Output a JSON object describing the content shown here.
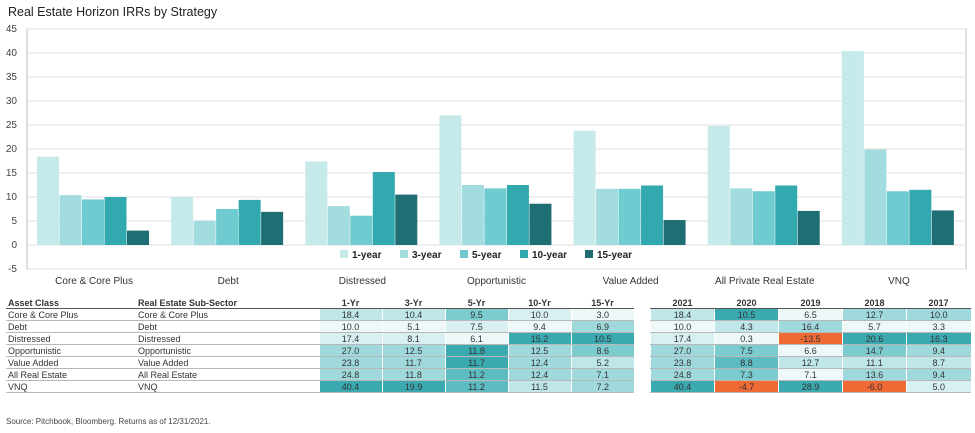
{
  "title": "Real Estate Horizon IRRs by Strategy",
  "source": "Source: Pitchbook, Bloomberg. Returns as of 12/31/2021.",
  "chart_data": {
    "type": "bar",
    "title": "Real Estate Horizon IRRs by Strategy",
    "categories": [
      "Core & Core Plus",
      "Debt",
      "Distressed",
      "Opportunistic",
      "Value Added",
      "All Private Real Estate",
      "VNQ"
    ],
    "series": [
      {
        "name": "1-year",
        "color": "#c6e9ea",
        "values": [
          18.4,
          10.0,
          17.4,
          27.0,
          23.8,
          24.8,
          40.4
        ]
      },
      {
        "name": "3-year",
        "color": "#a3dcde",
        "values": [
          10.4,
          5.1,
          8.1,
          12.5,
          11.7,
          11.8,
          19.9
        ]
      },
      {
        "name": "5-year",
        "color": "#6ecbcf",
        "values": [
          9.5,
          7.5,
          6.1,
          11.8,
          11.7,
          11.2,
          11.2
        ]
      },
      {
        "name": "10-year",
        "color": "#32a9af",
        "values": [
          10.0,
          9.4,
          15.2,
          12.5,
          12.4,
          12.4,
          11.5
        ]
      },
      {
        "name": "15-year",
        "color": "#1e6e73",
        "values": [
          3.0,
          6.9,
          10.5,
          8.6,
          5.2,
          7.1,
          7.2
        ]
      }
    ],
    "ylim": [
      -5,
      45
    ],
    "yticks": [
      -5,
      0,
      5,
      10,
      15,
      20,
      25,
      30,
      35,
      40,
      45
    ],
    "grid": true,
    "legend": "bottom-center"
  },
  "left_table": {
    "headers": [
      "Asset Class",
      "Real Estate Sub-Sector",
      "1-Yr",
      "3-Yr",
      "5-Yr",
      "10-Yr",
      "15-Yr"
    ],
    "rows": [
      [
        "Core & Core Plus",
        "Core & Core Plus",
        "18.4",
        "10.4",
        "9.5",
        "10.0",
        "3.0"
      ],
      [
        "Debt",
        "Debt",
        "10.0",
        "5.1",
        "7.5",
        "9.4",
        "6.9"
      ],
      [
        "Distressed",
        "Distressed",
        "17.4",
        "8.1",
        "6.1",
        "15.2",
        "10.5"
      ],
      [
        "Opportunistic",
        "Opportunistic",
        "27.0",
        "12.5",
        "11.8",
        "12.5",
        "8.6"
      ],
      [
        "Value Added",
        "Value Added",
        "23.8",
        "11.7",
        "11.7",
        "12.4",
        "5.2"
      ],
      [
        "All Real Estate",
        "All Real Estate",
        "24.8",
        "11.8",
        "11.2",
        "12.4",
        "7.1"
      ],
      [
        "VNQ",
        "VNQ",
        "40.4",
        "19.9",
        "11.2",
        "11.5",
        "7.2"
      ]
    ]
  },
  "right_table": {
    "headers": [
      "2021",
      "2020",
      "2019",
      "2018",
      "2017"
    ],
    "rows": [
      [
        "18.4",
        "10.5",
        "6.5",
        "12.7",
        "10.0"
      ],
      [
        "10.0",
        "4.3",
        "16.4",
        "5.7",
        "3.3"
      ],
      [
        "17.4",
        "0.3",
        "-13.5",
        "20.6",
        "16.3"
      ],
      [
        "27.0",
        "7.5",
        "6.6",
        "14.7",
        "9.4"
      ],
      [
        "23.8",
        "8.8",
        "12.7",
        "11.1",
        "8.7"
      ],
      [
        "24.8",
        "7.3",
        "7.1",
        "13.6",
        "9.4"
      ],
      [
        "40.4",
        "-4.7",
        "28.9",
        "-6.0",
        "5.0"
      ]
    ]
  },
  "heat_colors": {
    "scale": [
      "#eef8f9",
      "#d8f0f1",
      "#bfe6e8",
      "#9fd9dc",
      "#7ccbcf",
      "#5cbcc1",
      "#3aaab0"
    ],
    "neg_light": "#f4a582",
    "neg_dark": "#ef6a35"
  }
}
